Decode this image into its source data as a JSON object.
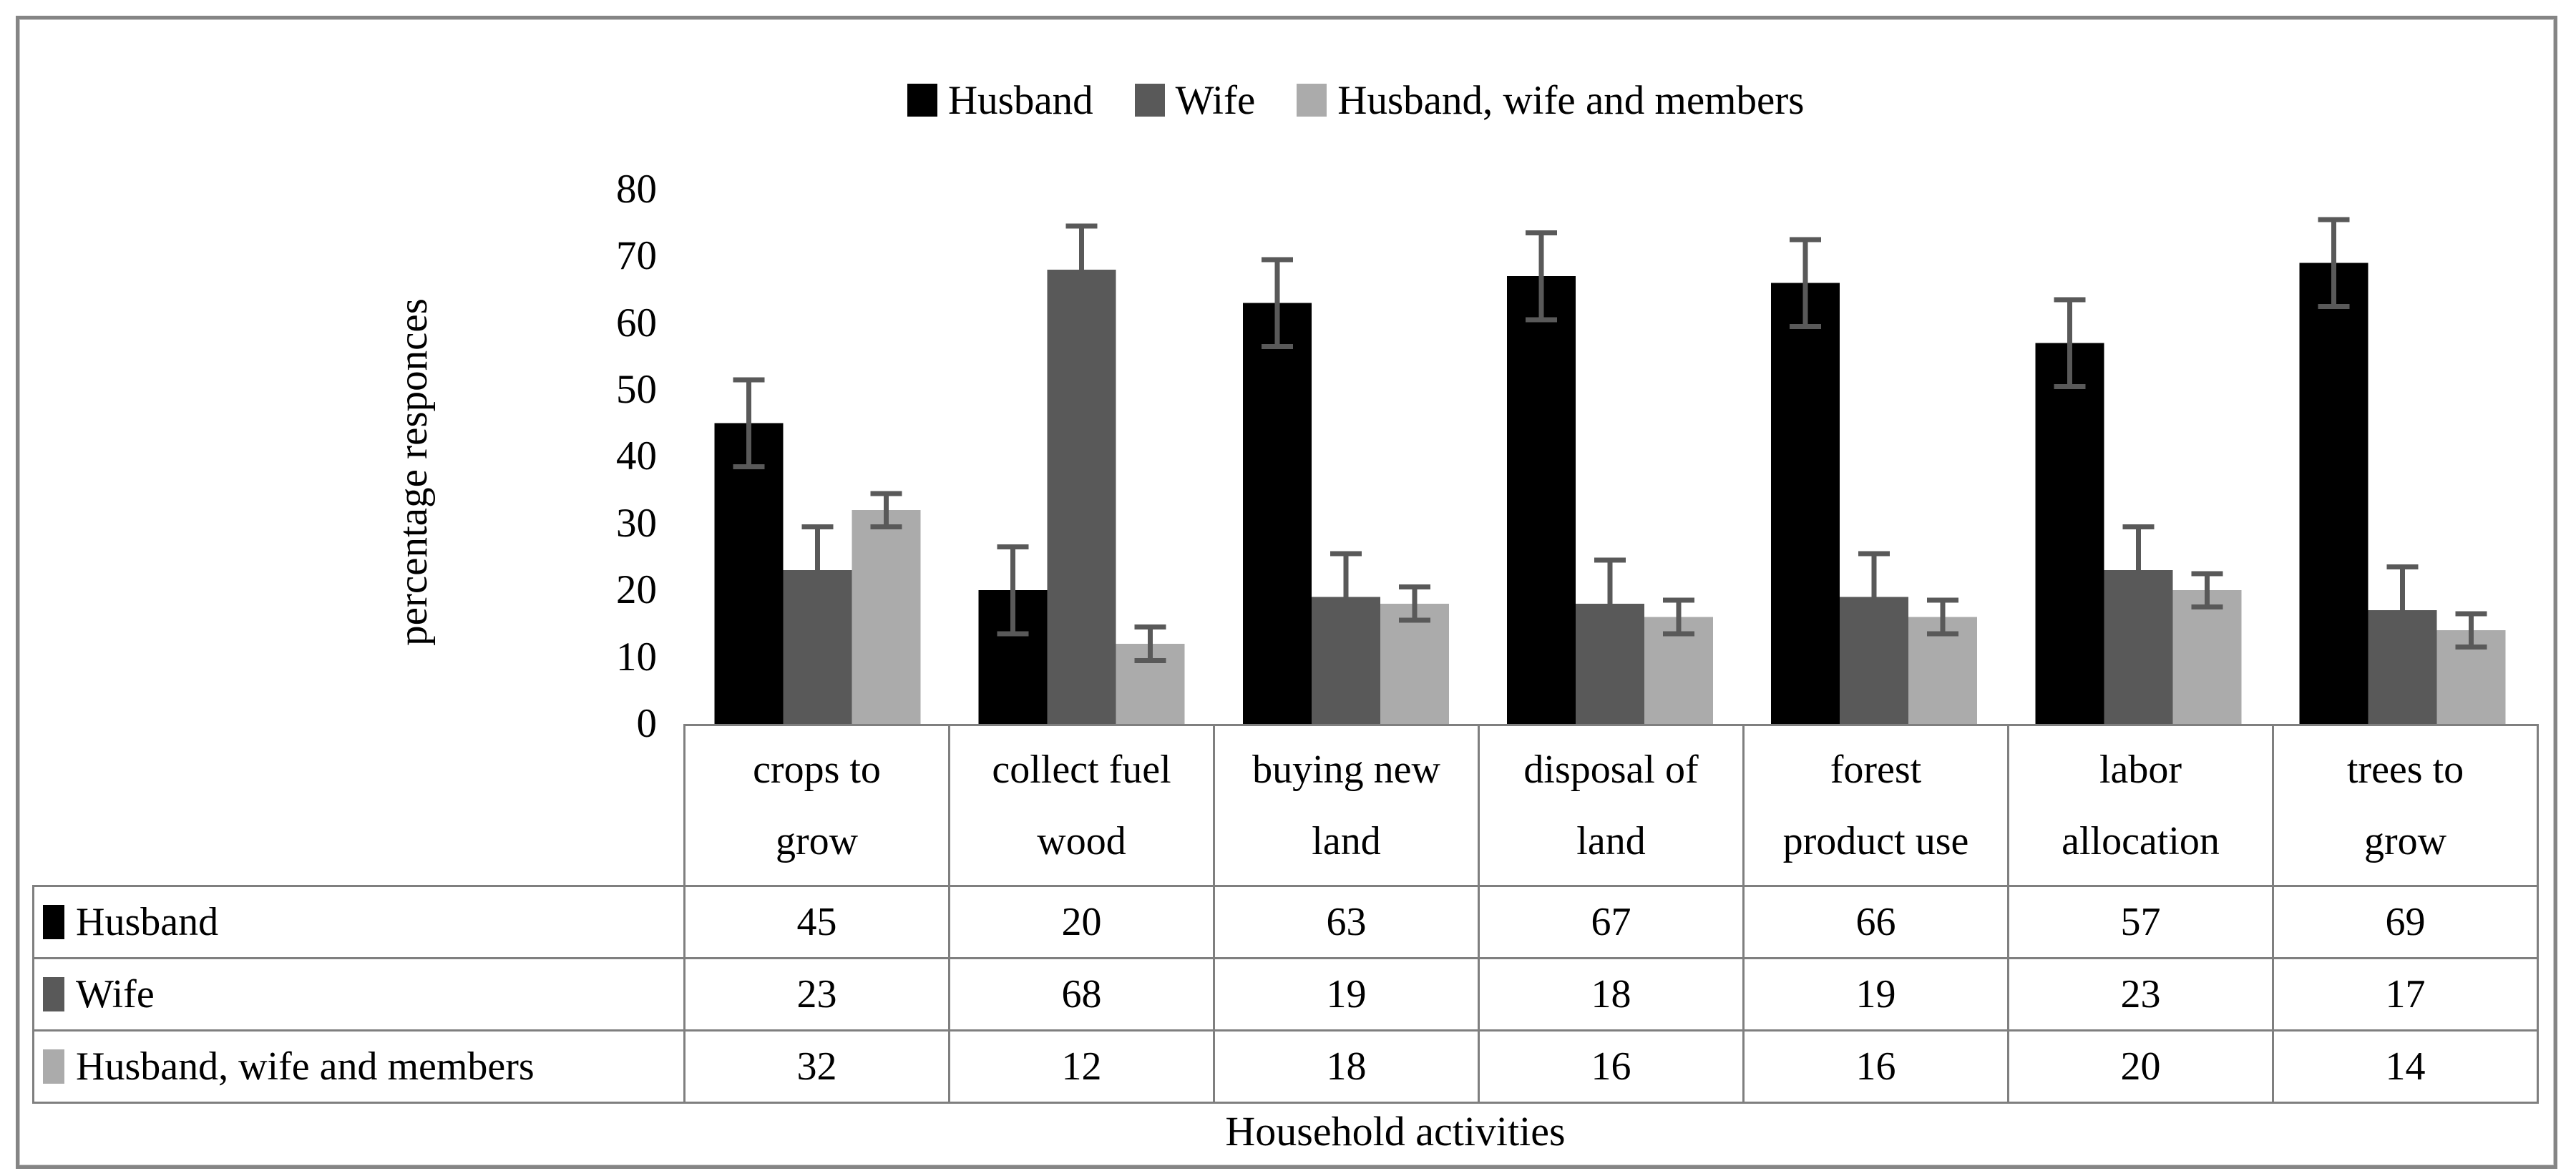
{
  "chart_data": {
    "type": "bar",
    "title": "",
    "categories": [
      "crops to grow",
      "collect fuel wood",
      "buying new land",
      "disposal of land",
      "forest product use",
      "labor allocation",
      "trees to grow"
    ],
    "series": [
      {
        "name": "Husband",
        "color": "#000000",
        "values": [
          45,
          20,
          63,
          67,
          66,
          57,
          69
        ],
        "errors": [
          6.5,
          6.5,
          6.5,
          6.5,
          6.5,
          6.5,
          6.5
        ]
      },
      {
        "name": "Wife",
        "color": "#595959",
        "values": [
          23,
          68,
          19,
          18,
          19,
          23,
          17
        ],
        "errors": [
          6.5,
          6.5,
          6.5,
          6.5,
          6.5,
          6.5,
          6.5
        ]
      },
      {
        "name": "Husband, wife and members",
        "color": "#ababab",
        "values": [
          32,
          12,
          18,
          16,
          16,
          20,
          14
        ],
        "errors": [
          2.5,
          2.5,
          2.5,
          2.5,
          2.5,
          2.5,
          2.5
        ]
      }
    ],
    "xlabel": "Household activities",
    "ylabel": "percentage responces",
    "ylim": [
      0,
      80
    ],
    "ytick_step": 10,
    "yticks": [
      0,
      10,
      20,
      30,
      40,
      50,
      60,
      70,
      80
    ],
    "legend_position": "top",
    "grid": false,
    "error_bar_color": "#595959",
    "border_color": "#7f7f7f"
  }
}
